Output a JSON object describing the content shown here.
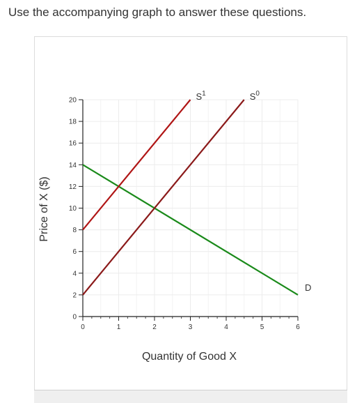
{
  "prompt": "Use the accompanying graph to answer these questions.",
  "chart_data": {
    "type": "line",
    "xlabel": "Quantity of Good X",
    "ylabel": "Price of X ($)",
    "xlim": [
      0,
      6
    ],
    "ylim": [
      0,
      20
    ],
    "x_ticks": [
      0,
      1,
      2,
      3,
      4,
      5,
      6
    ],
    "y_ticks": [
      0,
      2,
      4,
      6,
      8,
      10,
      12,
      14,
      16,
      18,
      20
    ],
    "grid": true,
    "series": [
      {
        "name": "D",
        "label_sup": "",
        "color": "#1a8a1a",
        "x": [
          0,
          6
        ],
        "y": [
          14,
          2
        ]
      },
      {
        "name": "S",
        "label_sup": "1",
        "color": "#b01515",
        "x": [
          0,
          3
        ],
        "y": [
          8,
          20
        ]
      },
      {
        "name": "S",
        "label_sup": "0",
        "color": "#8b1a1a",
        "x": [
          0,
          4.5
        ],
        "y": [
          2,
          20
        ]
      }
    ]
  }
}
